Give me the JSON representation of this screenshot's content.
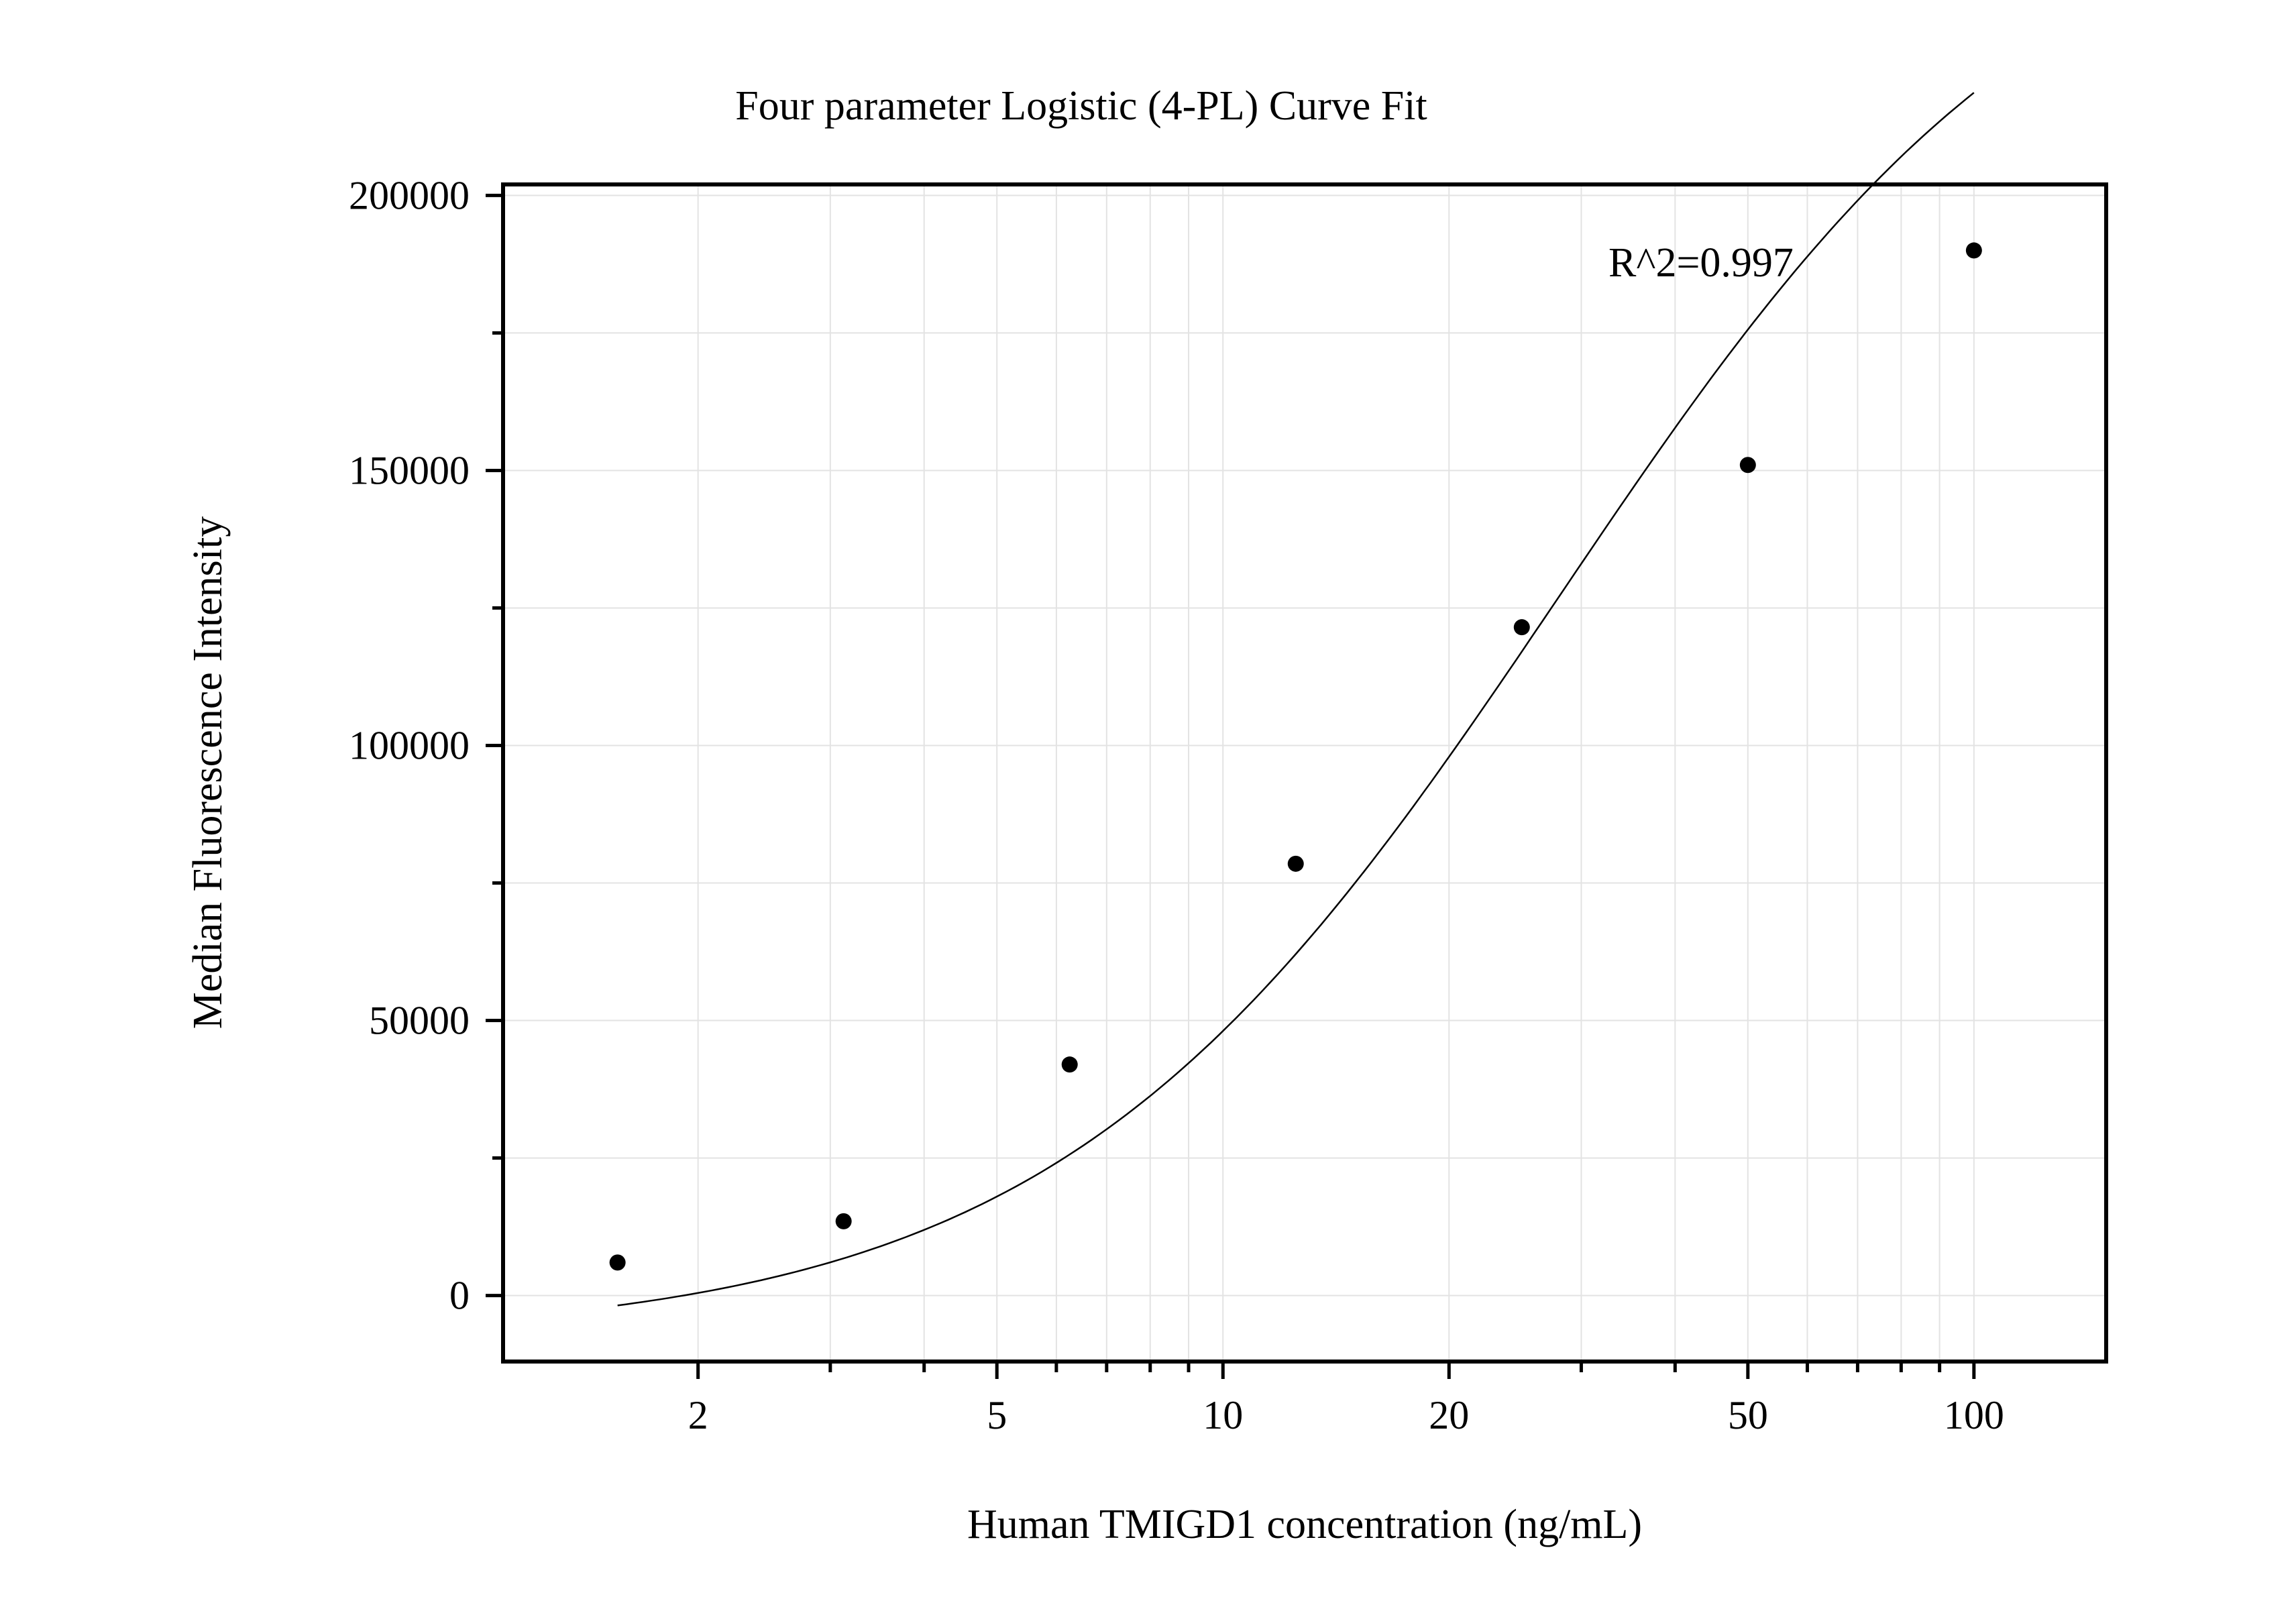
{
  "chart_data": {
    "type": "scatter",
    "title": "Four parameter Logistic (4-PL) Curve Fit",
    "xlabel": "Human TMIGD1 concentration (ng/mL)",
    "ylabel": "Median Fluorescence Intensity",
    "x_scale": "log",
    "xlim": [
      1.1,
      150
    ],
    "ylim": [
      -12000,
      202000
    ],
    "x_ticks": [
      2,
      5,
      10,
      20,
      50,
      100
    ],
    "x_tick_labels": [
      "2",
      "5",
      "10",
      "20",
      "50",
      "100"
    ],
    "y_ticks": [
      0,
      50000,
      100000,
      150000,
      200000
    ],
    "y_tick_labels": [
      "0",
      "50000",
      "100000",
      "150000",
      "200000"
    ],
    "grid": true,
    "annotation": "R^2=0.997",
    "series": [
      {
        "points": [
          {
            "x": 1.5625,
            "y": 6000
          },
          {
            "x": 3.125,
            "y": 13500
          },
          {
            "x": 6.25,
            "y": 42000
          },
          {
            "x": 12.5,
            "y": 78500
          },
          {
            "x": 25,
            "y": 121500
          },
          {
            "x": 50,
            "y": 151000
          },
          {
            "x": 100,
            "y": 190000
          }
        ]
      }
    ],
    "fit_curve": {
      "model": "4PL",
      "a": -8000,
      "b": 1.3,
      "c": 28,
      "d": 262000,
      "x_range": [
        1.5625,
        100
      ]
    }
  }
}
